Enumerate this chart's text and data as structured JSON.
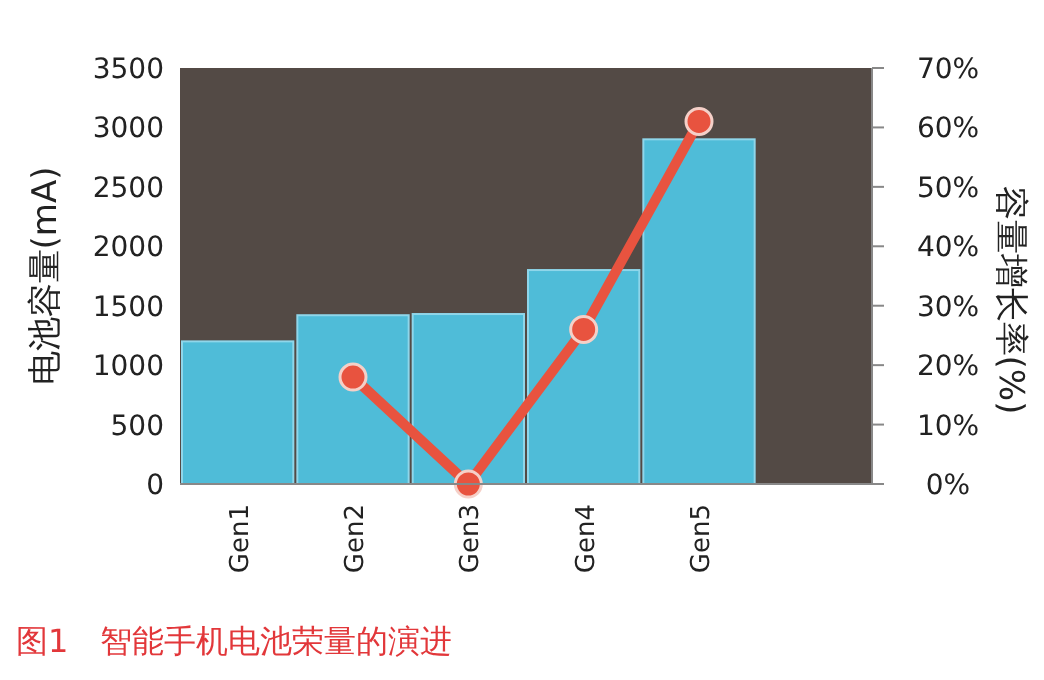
{
  "chart_data": {
    "type": "bar",
    "categories": [
      "Gen1",
      "Gen2",
      "Gen3",
      "Gen4",
      "Gen5",
      null
    ],
    "series": [
      {
        "color": "#4fbcd8",
        "values": [
          1200,
          1420,
          1430,
          1800,
          2900,
          null
        ]
      },
      {
        "type": "line",
        "axis": "y2",
        "color": "#e8533f",
        "values": [
          null,
          18,
          0,
          26,
          61,
          null
        ]
      }
    ],
    "marker": "circle",
    "line_style": "solid",
    "grid": false,
    "ylabel": "电池容量(mA)",
    "y2label": "容量增长率(%)",
    "ylim": [
      0,
      3500
    ],
    "yticks": [
      0,
      500,
      1000,
      1500,
      2000,
      2500,
      3000,
      3500
    ],
    "y2lim": [
      0,
      70
    ],
    "y2ticks": [
      {
        "value": 0,
        "label": "0%"
      },
      {
        "value": 10,
        "label": "10%"
      },
      {
        "value": 20,
        "label": "20%"
      },
      {
        "value": 30,
        "label": "30%"
      },
      {
        "value": 40,
        "label": "40%"
      },
      {
        "value": 50,
        "label": "50%"
      },
      {
        "value": 60,
        "label": "60%"
      },
      {
        "value": 70,
        "label": "70%"
      }
    ],
    "annotations": [
      "图1　智能手机电池荣量的演进"
    ]
  }
}
